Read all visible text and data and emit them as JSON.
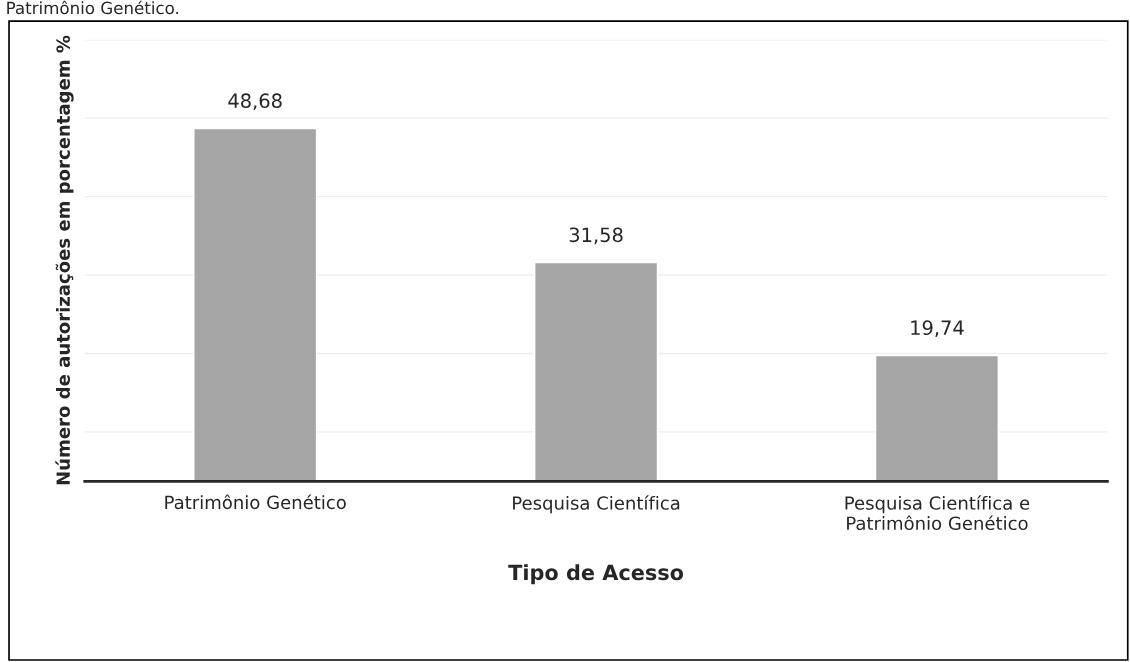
{
  "chart_data": {
    "type": "bar",
    "xlabel": "Tipo de Acesso",
    "ylabel": "Número de autorizações em porcentagem %",
    "annotations": [
      "Patrimônio Genético."
    ],
    "categories": [
      "Patrimônio Genético",
      "Pesquisa Científica",
      "Pesquisa Científica e\nPatrimônio Genético"
    ],
    "values": [
      48.68,
      31.58,
      19.74
    ],
    "color": "#a5a5a5",
    "value_labels": [
      "48,68",
      "31,58",
      "19,74"
    ],
    "ylim": [
      3.7,
      60
    ],
    "yticks": [
      {
        "value": 10,
        "label": null
      },
      {
        "value": 20,
        "label": null
      },
      {
        "value": 30,
        "label": null
      },
      {
        "value": 40,
        "label": null
      },
      {
        "value": 50,
        "label": null
      },
      {
        "value": 60,
        "label": null
      }
    ],
    "grid": "y",
    "tick_labels": "x"
  }
}
